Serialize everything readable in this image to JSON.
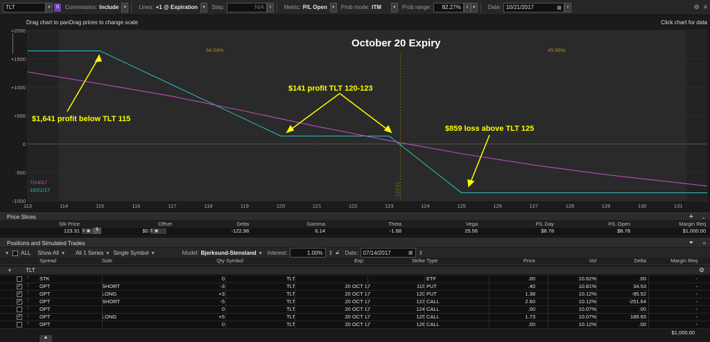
{
  "toolbar": {
    "symbol": "TLT",
    "commission_label": "Commission:",
    "commission_value": "Include",
    "lines_label": "Lines:",
    "lines_value": "+1 @ Expiration",
    "step_label": "Step:",
    "step_value": "N/A",
    "metric_label": "Metric:",
    "metric_value": "P/L Open",
    "prob_mode_label": "Prob mode:",
    "prob_mode_value": "ITM",
    "prob_range_label": "Prob range:",
    "prob_range_value": "82.27%",
    "date_label": "Date:",
    "date_value": "10/21/2017"
  },
  "chart": {
    "hint_left": "Drag chart to panDrag prices to change scale",
    "hint_right": "Click chart for data",
    "prob_left": "54.04%",
    "prob_right": "45.96%",
    "current_price_marker": "123.31",
    "legend_dates": [
      "7/14/17",
      "10/21/17"
    ]
  },
  "annotations": {
    "title": "October 20 Expiry",
    "note_left": "$1,641 profit below TLT 115",
    "note_mid": "$141 profit TLT 120-123",
    "note_right": "$859 loss above TLT 125"
  },
  "chart_data": {
    "type": "line",
    "xlabel": "",
    "ylabel": "",
    "x_ticks": [
      113,
      114,
      115,
      116,
      117,
      118,
      119,
      120,
      121,
      122,
      123,
      124,
      125,
      126,
      127,
      128,
      129,
      130,
      131
    ],
    "y_ticks": [
      "+2000",
      "+1500",
      "+1000",
      "+500",
      "0",
      "-500",
      "-1000"
    ],
    "xlim": [
      113,
      131.8
    ],
    "ylim": [
      -1000,
      2000
    ],
    "series": [
      {
        "name": "10/21/17",
        "color": "#2fc3c3",
        "x": [
          113,
          115,
          120,
          123,
          125,
          131.8
        ],
        "y": [
          1641,
          1641,
          141,
          141,
          -859,
          -859
        ]
      },
      {
        "name": "7/14/17",
        "color": "#c855c8",
        "x": [
          113,
          115,
          117,
          119,
          121,
          123,
          125,
          127,
          129,
          131.8
        ],
        "y": [
          1270,
          1060,
          840,
          580,
          310,
          60,
          -170,
          -370,
          -540,
          -740
        ]
      }
    ]
  },
  "price_slices": {
    "title": "Price Slices",
    "headers": [
      "Stk Price",
      "Offset",
      "Delta",
      "Gamma",
      "Theta",
      "Vega",
      "P/L Day",
      "P/L Open",
      "Margin Req"
    ],
    "values": [
      "123.31",
      "$0",
      "-122.98",
      "6.14",
      "-1.68",
      "25.56",
      "$8.78",
      "$8.78",
      "$1,000.00"
    ]
  },
  "positions": {
    "title": "Positions and Simulated Trades",
    "all_label": "ALL",
    "show_all": "Show All",
    "series": "All 1 Series",
    "symbol_mode": "Single Symbol",
    "model_label": "Model:",
    "model_value": "Bjerksund-Stensland",
    "interest_label": "Interest:",
    "interest_value": "1.00%",
    "date_label": "Date:",
    "date_value": "07/14/2017",
    "headers": [
      "Spread",
      "Side",
      "Qty",
      "Symbol",
      "Exp",
      "Strike",
      "Type",
      "Price",
      "Vol",
      "Delta",
      "Margin Req"
    ],
    "group": "TLT",
    "rows": [
      {
        "checked": false,
        "spread": "STK",
        "side": "",
        "qty": "0",
        "symbol": "TLT",
        "exp": "",
        "strike": "",
        "type": "ETF",
        "price": ".00",
        "vol": "10.62%",
        "delta": ".00",
        "margin": "-"
      },
      {
        "checked": true,
        "spread": "OPT",
        "side": "SHORT",
        "qty": "-3",
        "symbol": "TLT",
        "exp": "20 OCT 17",
        "strike": "115",
        "type": "PUT",
        "price": ".40",
        "vol": "10.81%",
        "delta": "34.53",
        "margin": "-"
      },
      {
        "checked": true,
        "spread": "OPT",
        "side": "LONG",
        "qty": "+3",
        "symbol": "TLT",
        "exp": "20 OCT 17",
        "strike": "120",
        "type": "PUT",
        "price": "1.38",
        "vol": "10.12%",
        "delta": "-95.52",
        "margin": "-"
      },
      {
        "checked": true,
        "spread": "OPT",
        "side": "SHORT",
        "qty": "-5",
        "symbol": "TLT",
        "exp": "20 OCT 17",
        "strike": "123",
        "type": "CALL",
        "price": "2.60",
        "vol": "10.12%",
        "delta": "-251.64",
        "margin": "-"
      },
      {
        "checked": false,
        "spread": "OPT",
        "side": "",
        "qty": "0",
        "symbol": "TLT",
        "exp": "20 OCT 17",
        "strike": "124",
        "type": "CALL",
        "price": ".00",
        "vol": "10.07%",
        "delta": ".00",
        "margin": "-"
      },
      {
        "checked": true,
        "spread": "OPT",
        "side": "LONG",
        "qty": "+5",
        "symbol": "TLT",
        "exp": "20 OCT 17",
        "strike": "125",
        "type": "CALL",
        "price": "1.73",
        "vol": "10.07%",
        "delta": "189.65",
        "margin": "-"
      },
      {
        "checked": false,
        "spread": "OPT",
        "side": "",
        "qty": "0",
        "symbol": "TLT",
        "exp": "20 OCT 17",
        "strike": "126",
        "type": "CALL",
        "price": ".00",
        "vol": "10.12%",
        "delta": ".00",
        "margin": "-"
      }
    ],
    "total_margin": "$1,000.00"
  },
  "colors": {
    "expiry_line": "#2fc3c3",
    "today_line": "#c855c8",
    "annotation": "#ffff00",
    "prob_text": "#b08a2a"
  }
}
